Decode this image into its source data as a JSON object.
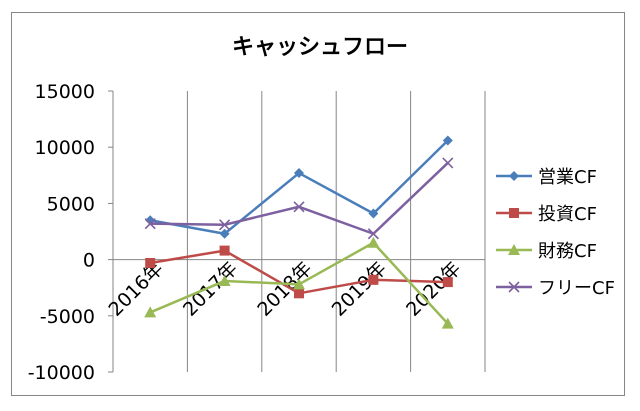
{
  "chart_data": {
    "type": "line",
    "title": "キャッシュフロー",
    "categories": [
      "2016年",
      "2017年",
      "2018年",
      "2019年",
      "2020年"
    ],
    "ylim": [
      -10000,
      15000
    ],
    "yticks": [
      15000,
      10000,
      5000,
      0,
      -5000,
      -10000
    ],
    "grid": "vertical",
    "legend_position": "right",
    "series": [
      {
        "name": "営業CF",
        "values": [
          3500,
          2300,
          7700,
          4100,
          10600
        ],
        "color": "#4a7ebb",
        "marker": "diamond"
      },
      {
        "name": "投資CF",
        "values": [
          -300,
          800,
          -3000,
          -1800,
          -2000
        ],
        "color": "#be4b48",
        "marker": "square"
      },
      {
        "name": "財務CF",
        "values": [
          -4700,
          -1900,
          -2200,
          1500,
          -5700
        ],
        "color": "#98b954",
        "marker": "triangle"
      },
      {
        "name": "フリーCF",
        "values": [
          3200,
          3100,
          4700,
          2300,
          8600
        ],
        "color": "#7d60a0",
        "marker": "x"
      }
    ]
  }
}
